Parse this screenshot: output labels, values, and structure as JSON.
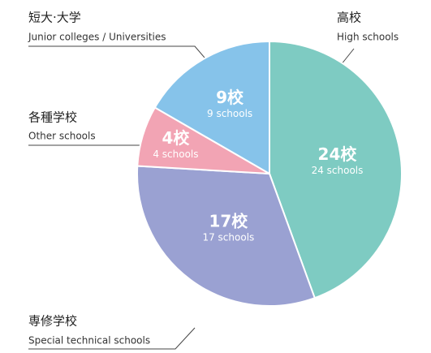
{
  "chart_data": {
    "type": "pie",
    "categories": [
      "高校",
      "専修学校",
      "各種学校",
      "短大·大学"
    ],
    "categories_en": [
      "High schools",
      "Special technical schools",
      "Other schools",
      "Junior colleges / Universities"
    ],
    "values": [
      24,
      17,
      4,
      9
    ],
    "value_labels": [
      "24校",
      "17校",
      "4校",
      "9校"
    ],
    "value_labels_en": [
      "24 schools",
      "17 schools",
      "4 schools",
      "9 schools"
    ],
    "colors": [
      "#7ecbc2",
      "#9aa1d2",
      "#f2a4b4",
      "#86c3ea"
    ]
  }
}
